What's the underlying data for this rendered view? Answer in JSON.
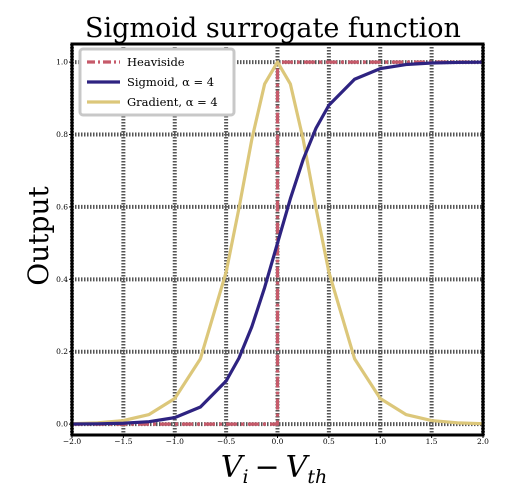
{
  "chart_data": {
    "type": "line",
    "title": "Sigmoid surrogate function",
    "xlabel": "V_i − V_th",
    "xlabel_main": "V",
    "xlabel_sub1": "i",
    "xlabel_minus": "−",
    "xlabel_sub2": "th",
    "ylabel": "Output",
    "xlim": [
      -2.0,
      2.0
    ],
    "ylim": [
      -0.03,
      1.05
    ],
    "xticks": [
      -2.0,
      -1.5,
      -1.0,
      -0.5,
      0.0,
      0.5,
      1.0,
      1.5,
      2.0
    ],
    "yticks": [
      0.0,
      0.2,
      0.4,
      0.6,
      0.8,
      1.0
    ],
    "xtick_labels": [
      "−2.0",
      "−1.5",
      "−1.0",
      "−0.5",
      "0.0",
      "0.5",
      "1.0",
      "1.5",
      "2.0"
    ],
    "ytick_labels": [
      "0.0",
      "0.2",
      "0.4",
      "0.6",
      "0.8",
      "1.0"
    ],
    "grid": true,
    "legend_position": "top-left",
    "series": [
      {
        "name": "Heaviside",
        "style": "dash-dot",
        "color": "#c65a6a",
        "x": [
          -2.0,
          -1.5,
          -1.0,
          -0.5,
          0.0,
          0.0,
          0.5,
          1.0,
          1.5,
          2.0
        ],
        "y": [
          0,
          0,
          0,
          0,
          0,
          1,
          1,
          1,
          1,
          1
        ]
      },
      {
        "name": "Sigmoid, α = 4",
        "style": "solid",
        "color": "#2e2381",
        "x": [
          -2.0,
          -1.75,
          -1.5,
          -1.25,
          -1.0,
          -0.75,
          -0.5,
          -0.375,
          -0.25,
          -0.125,
          0.0,
          0.125,
          0.25,
          0.375,
          0.5,
          0.75,
          1.0,
          1.25,
          1.5,
          1.75,
          2.0
        ],
        "y": [
          0.0003,
          0.0009,
          0.0025,
          0.0067,
          0.018,
          0.0474,
          0.1192,
          0.1824,
          0.2689,
          0.3775,
          0.5,
          0.6225,
          0.7311,
          0.8176,
          0.8808,
          0.9526,
          0.982,
          0.9933,
          0.9975,
          0.9991,
          0.9997
        ]
      },
      {
        "name": "Gradient, α = 4",
        "style": "solid",
        "color": "#dcc77a",
        "x": [
          -2.0,
          -1.75,
          -1.5,
          -1.25,
          -1.0,
          -0.75,
          -0.5,
          -0.375,
          -0.25,
          -0.125,
          0.0,
          0.125,
          0.25,
          0.375,
          0.5,
          0.75,
          1.0,
          1.25,
          1.5,
          1.75,
          2.0
        ],
        "y": [
          0.0013,
          0.0036,
          0.0099,
          0.0266,
          0.0707,
          0.1807,
          0.42,
          0.5966,
          0.7864,
          0.9398,
          1.0,
          0.9398,
          0.7864,
          0.5966,
          0.42,
          0.1807,
          0.0707,
          0.0266,
          0.0099,
          0.0036,
          0.0013
        ]
      }
    ]
  }
}
